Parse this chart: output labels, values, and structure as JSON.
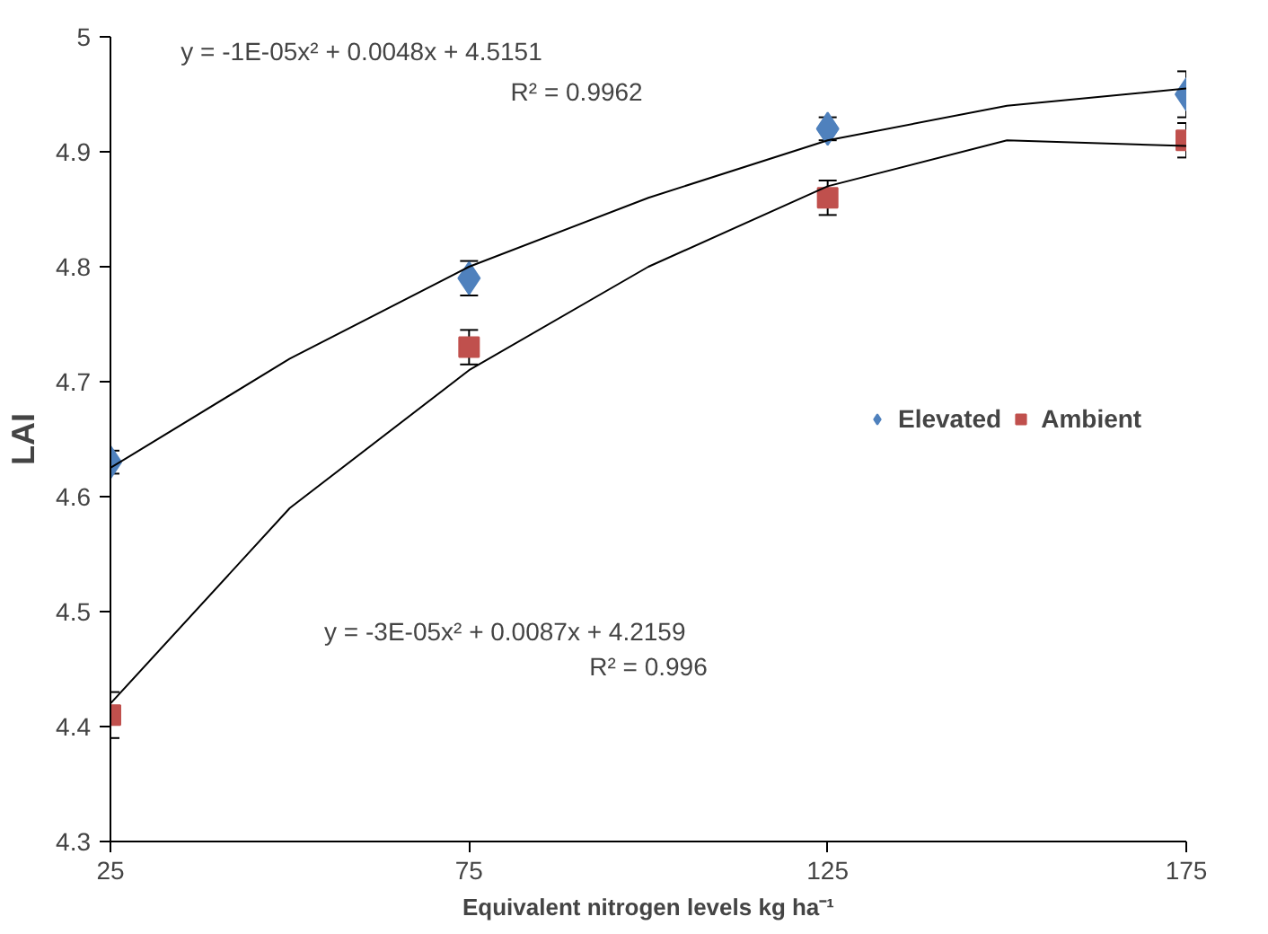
{
  "chart_data": {
    "type": "scatter",
    "xlabel": "Equivalent nitrogen levels kg ha⁻¹",
    "ylabel": "LAI",
    "x": [
      25,
      75,
      125,
      175
    ],
    "xlim": [
      25,
      175
    ],
    "xticks": [
      25,
      75,
      125,
      175
    ],
    "ylim": [
      4.3,
      5
    ],
    "yticks": [
      4.3,
      4.4,
      4.5,
      4.6,
      4.7,
      4.8,
      4.9,
      5
    ],
    "grid": false,
    "legend": "right",
    "series": [
      {
        "name": "Elevated",
        "color": "#4f81bd",
        "marker": "diamond",
        "values": [
          4.63,
          4.79,
          4.92,
          4.95
        ],
        "errors": [
          0.01,
          0.015,
          0.01,
          0.02
        ]
      },
      {
        "name": "Ambient",
        "color": "#c0504d",
        "marker": "square",
        "values": [
          4.41,
          4.73,
          4.86,
          4.91
        ],
        "errors": [
          0.02,
          0.015,
          0.015,
          0.015
        ]
      },
      {
        "type": "line",
        "color": "#000000",
        "x": [
          25,
          50,
          75,
          100,
          125,
          150,
          175
        ],
        "values": [
          4.625,
          4.72,
          4.8,
          4.86,
          4.91,
          4.94,
          4.955
        ]
      },
      {
        "type": "line",
        "color": "#000000",
        "x": [
          25,
          50,
          75,
          100,
          125,
          150,
          175
        ],
        "values": [
          4.42,
          4.59,
          4.71,
          4.8,
          4.87,
          4.91,
          4.905
        ]
      }
    ],
    "annotations": [
      "y = -1E-05x² + 0.0048x + 4.5151",
      "R² = 0.9962",
      "y = -3E-05x² + 0.0087x + 4.2159",
      "R² = 0.996"
    ]
  }
}
